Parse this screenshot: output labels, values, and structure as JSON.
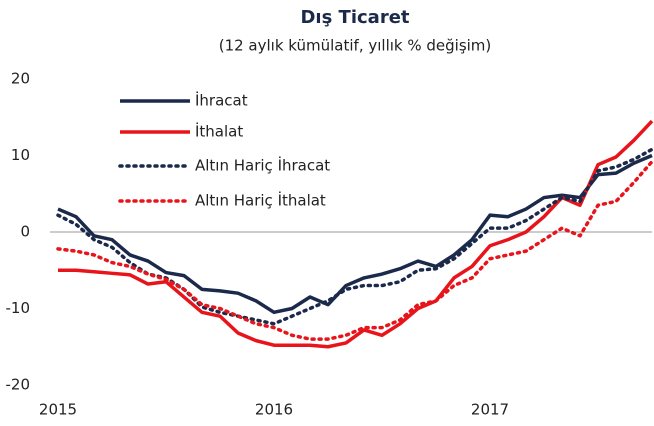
{
  "chart_data": {
    "type": "line",
    "title": "Dış Ticaret",
    "subtitle": "(12 aylık kümülatif, yıllık % değişim)",
    "categories": [
      "2015",
      null,
      null,
      null,
      null,
      null,
      null,
      null,
      null,
      null,
      null,
      null,
      "2016",
      null,
      null,
      null,
      null,
      null,
      null,
      null,
      null,
      null,
      null,
      null,
      "2017",
      null,
      null,
      null,
      null,
      null,
      null,
      null,
      null,
      null
    ],
    "series": [
      {
        "name": "İhracat",
        "color": "#1b2a4a",
        "dash": "solid",
        "values": [
          3,
          2,
          -0.5,
          -1,
          -3,
          -3.8,
          -5.3,
          -5.7,
          -7.5,
          -7.7,
          -8,
          -9,
          -10.5,
          -10,
          -8.5,
          -9.5,
          -7,
          -6,
          -5.5,
          -4.8,
          -3.8,
          -4.5,
          -3,
          -1,
          2.2,
          2,
          3,
          4.5,
          4.8,
          4.5,
          7.5,
          7.7,
          9,
          10
        ]
      },
      {
        "name": "İthalat",
        "color": "#e8141b",
        "dash": "solid",
        "values": [
          -5,
          -5,
          -5.2,
          -5.4,
          -5.6,
          -6.8,
          -6.5,
          -8.5,
          -10.5,
          -11,
          -13.2,
          -14.2,
          -14.8,
          -14.8,
          -14.8,
          -15,
          -14.5,
          -12.8,
          -13.5,
          -12,
          -10,
          -9,
          -6,
          -4.5,
          -1.8,
          -1,
          0,
          2,
          4.5,
          3.5,
          8.8,
          9.8,
          12,
          14.5
        ]
      },
      {
        "name": "Altın Hariç İhracat",
        "color": "#1b2a4a",
        "dash": "dotted",
        "values": [
          2.2,
          1,
          -1,
          -2,
          -4,
          -5.5,
          -6,
          -7.5,
          -9.8,
          -10.5,
          -11,
          -11.5,
          -12,
          -11,
          -10,
          -9,
          -7.5,
          -7,
          -7,
          -6.5,
          -5,
          -4.8,
          -3.5,
          -1.5,
          0.5,
          0.5,
          1.5,
          3,
          4.5,
          4,
          8,
          8.5,
          9.5,
          10.8
        ]
      },
      {
        "name": "Altın Hariç İthalat",
        "color": "#e8141b",
        "dash": "dotted",
        "values": [
          -2.2,
          -2.5,
          -3,
          -4,
          -4.5,
          -5.5,
          -6.2,
          -7.5,
          -9.5,
          -10,
          -11,
          -12,
          -12.5,
          -13.5,
          -14,
          -14,
          -13.5,
          -12.5,
          -12.5,
          -11.5,
          -9.5,
          -9,
          -7,
          -6,
          -3.5,
          -3,
          -2.5,
          -1,
          0.5,
          -0.5,
          3.5,
          4,
          6.5,
          9.2
        ]
      }
    ],
    "ylim": [
      -20,
      20
    ],
    "yticks": [
      -20,
      -10,
      0,
      10,
      20
    ],
    "grid": false,
    "legend": "upper left"
  }
}
